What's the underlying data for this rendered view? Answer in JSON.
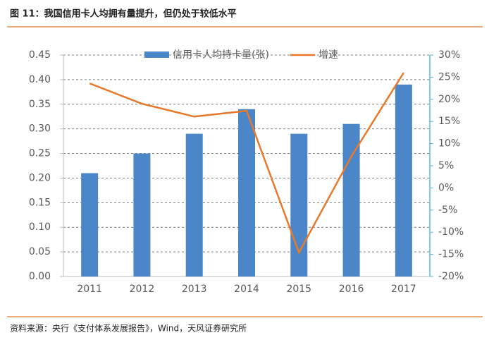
{
  "chart_data": {
    "type": "bar",
    "title": "图 11：我国信用卡人均拥有量提升，但仍处于较低水平",
    "source": "资料来源：央行《支付体系发展报告》，Wind，天风证券研究所",
    "categories": [
      "2011",
      "2012",
      "2013",
      "2014",
      "2015",
      "2016",
      "2017"
    ],
    "series": [
      {
        "name": "信用卡人均持卡量(张)",
        "type": "bar",
        "color": "#4a86c8",
        "values": [
          0.21,
          0.25,
          0.29,
          0.34,
          0.29,
          0.31,
          0.39
        ]
      },
      {
        "name": "增速",
        "type": "line",
        "axis": "y2",
        "color": "#e8792b",
        "values": [
          23.6,
          19,
          16.1,
          17.4,
          -14.6,
          7.1,
          26
        ]
      }
    ],
    "ylim": [
      0,
      0.45
    ],
    "yticks": [
      {
        "value": 0,
        "label": "0.00"
      },
      0.05,
      {
        "value": 0.1,
        "label": "0.10"
      },
      0.15,
      {
        "value": 0.2,
        "label": "0.20"
      },
      0.25,
      {
        "value": 0.3,
        "label": "0.30"
      },
      0.35,
      {
        "value": 0.4,
        "label": "0.40"
      },
      0.45
    ],
    "y2lim": [
      -20,
      30
    ],
    "y2ticks": [
      {
        "value": -20,
        "label": "-20%"
      },
      {
        "value": -15,
        "label": "-15%"
      },
      {
        "value": -10,
        "label": "-10%"
      },
      {
        "value": -5,
        "label": "-5%"
      },
      {
        "value": 0,
        "label": "0%"
      },
      {
        "value": 5,
        "label": "5%"
      },
      {
        "value": 10,
        "label": "10%"
      },
      {
        "value": 15,
        "label": "15%"
      },
      {
        "value": 20,
        "label": "20%"
      },
      {
        "value": 25,
        "label": "25%"
      },
      {
        "value": 30,
        "label": "30%"
      }
    ],
    "grid": true
  }
}
